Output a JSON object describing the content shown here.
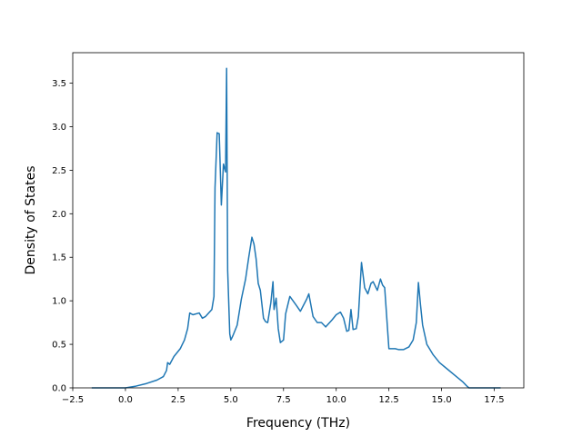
{
  "chart_data": {
    "type": "line",
    "title": "",
    "xlabel": "Frequency (THz)",
    "ylabel": "Density of States",
    "xlim": [
      -2.5,
      18.9
    ],
    "ylim": [
      0,
      3.85
    ],
    "xticks": [
      "−2.5",
      "0.0",
      "2.5",
      "5.0",
      "7.5",
      "10.0",
      "12.5",
      "15.0",
      "17.5"
    ],
    "yticks": [
      "0.0",
      "0.5",
      "1.0",
      "1.5",
      "2.0",
      "2.5",
      "3.0",
      "3.5"
    ],
    "grid": false,
    "line_color": "#1f77b4",
    "series": [
      {
        "x": [
          -1.6,
          -1.0,
          0.0,
          0.5,
          1.0,
          1.5,
          1.8,
          1.95,
          2.0,
          2.1,
          2.3,
          2.6,
          2.8,
          2.95,
          3.05,
          3.2,
          3.5,
          3.65,
          3.8,
          4.1,
          4.2,
          4.25,
          4.35,
          4.45,
          4.55,
          4.65,
          4.75,
          4.8,
          4.85,
          4.95,
          5.0,
          5.1,
          5.3,
          5.5,
          5.7,
          5.85,
          6.0,
          6.1,
          6.2,
          6.3,
          6.4,
          6.55,
          6.65,
          6.75,
          6.9,
          7.0,
          7.05,
          7.15,
          7.25,
          7.35,
          7.5,
          7.6,
          7.8,
          8.1,
          8.3,
          8.6,
          8.7,
          8.9,
          9.1,
          9.3,
          9.5,
          9.8,
          10.0,
          10.2,
          10.35,
          10.5,
          10.6,
          10.7,
          10.8,
          10.95,
          11.05,
          11.2,
          11.35,
          11.5,
          11.65,
          11.75,
          11.95,
          12.1,
          12.2,
          12.3,
          12.5,
          12.8,
          12.95,
          13.2,
          13.45,
          13.65,
          13.8,
          13.9,
          14.0,
          14.1,
          14.3,
          14.6,
          14.9,
          15.3,
          15.7,
          16.0,
          16.2,
          16.3,
          16.5,
          17.0,
          17.8
        ],
        "y": [
          0,
          0,
          0,
          0.02,
          0.05,
          0.09,
          0.13,
          0.2,
          0.29,
          0.27,
          0.36,
          0.45,
          0.55,
          0.68,
          0.86,
          0.84,
          0.86,
          0.8,
          0.82,
          0.9,
          1.05,
          2.3,
          2.93,
          2.92,
          2.1,
          2.57,
          2.48,
          3.67,
          1.35,
          0.62,
          0.55,
          0.6,
          0.72,
          1.02,
          1.25,
          1.5,
          1.73,
          1.65,
          1.48,
          1.2,
          1.12,
          0.8,
          0.76,
          0.75,
          0.98,
          1.22,
          0.9,
          1.03,
          0.68,
          0.52,
          0.55,
          0.85,
          1.05,
          0.95,
          0.88,
          1.02,
          1.08,
          0.82,
          0.75,
          0.75,
          0.7,
          0.78,
          0.84,
          0.87,
          0.8,
          0.65,
          0.66,
          0.9,
          0.67,
          0.68,
          0.82,
          1.44,
          1.15,
          1.08,
          1.2,
          1.22,
          1.12,
          1.25,
          1.18,
          1.15,
          0.45,
          0.45,
          0.44,
          0.44,
          0.47,
          0.55,
          0.75,
          1.21,
          0.95,
          0.72,
          0.5,
          0.38,
          0.29,
          0.21,
          0.13,
          0.07,
          0.02,
          0,
          0,
          0,
          0
        ]
      }
    ]
  }
}
